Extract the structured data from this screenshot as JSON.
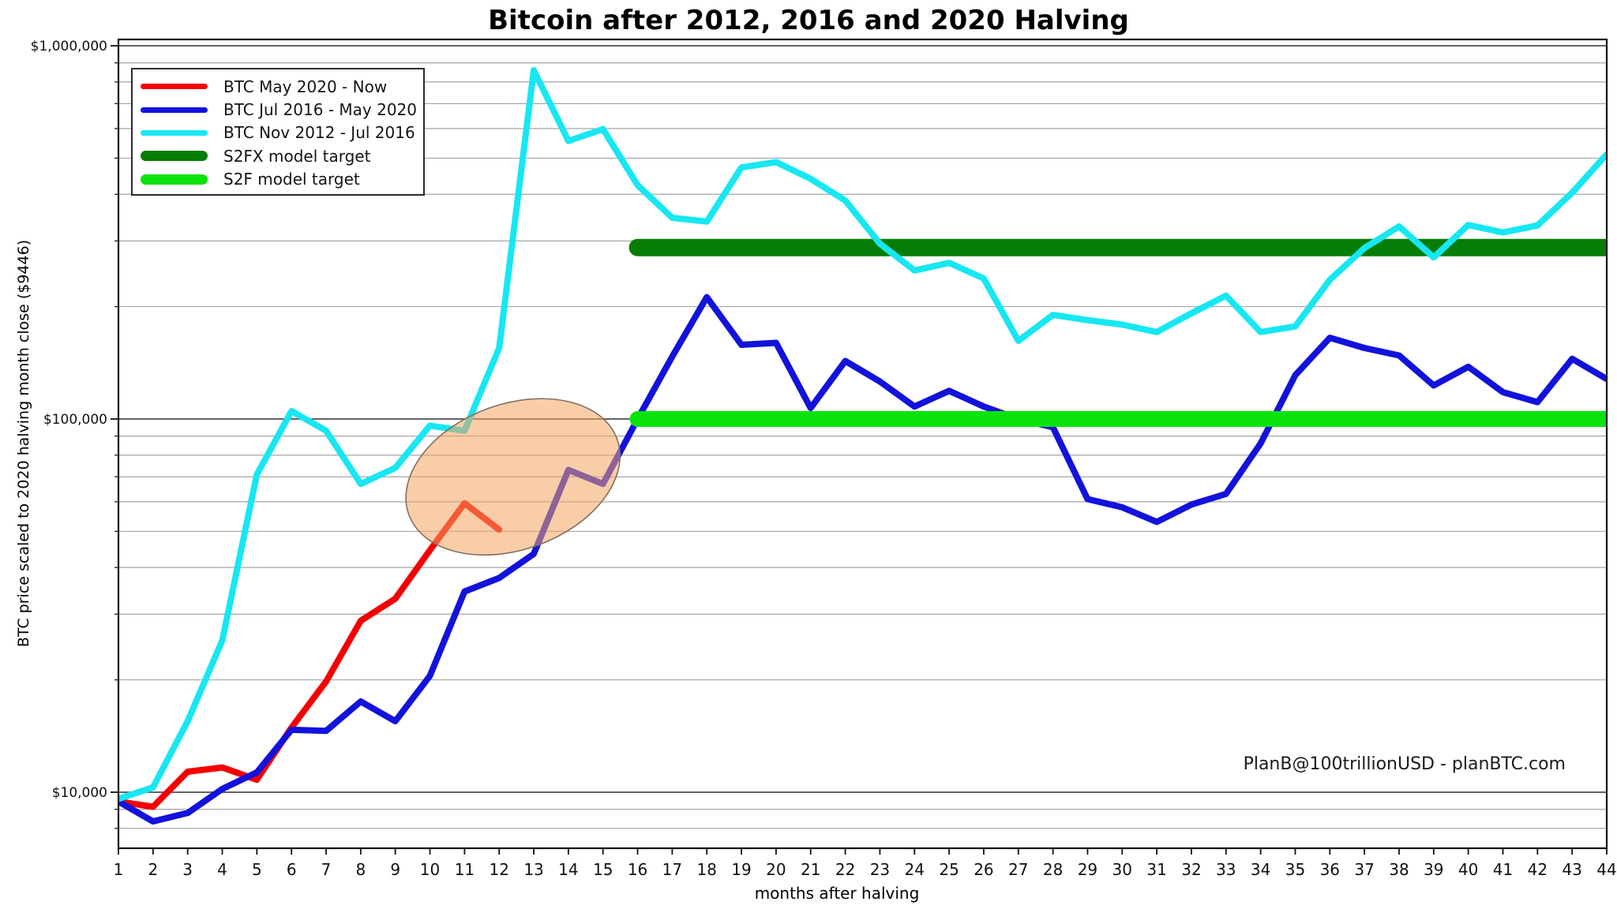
{
  "title": "Bitcoin after 2012, 2016 and 2020 Halving",
  "attribution": "PlanB@100trillionUSD  -  planBTC.com",
  "axes": {
    "y_label": "BTC price scaled to 2020 halving month close ($9446)",
    "x_label": "months after halving",
    "y_ticks": [
      {
        "label": "$1,000,000",
        "value": 1000000
      },
      {
        "label": "$100,000",
        "value": 100000
      },
      {
        "label": "$10,000",
        "value": 10000
      }
    ],
    "x_ticks": {
      "min": 1,
      "max": 44,
      "step": 1
    }
  },
  "legend": {
    "items": [
      {
        "id": "btc-2020",
        "label": "BTC May 2020 - Now",
        "color": "#f40000",
        "thickness": 7
      },
      {
        "id": "btc-2016",
        "label": "BTC Jul 2016 - May 2020",
        "color": "#1212dc",
        "thickness": 7
      },
      {
        "id": "btc-2012",
        "label": "BTC Nov 2012 - Jul 2016",
        "color": "#17e7f2",
        "thickness": 7
      },
      {
        "id": "s2fx",
        "label": "S2FX model target",
        "color": "#067d06",
        "thickness": 13
      },
      {
        "id": "s2f",
        "label": "S2F model target",
        "color": "#0ae30a",
        "thickness": 13
      }
    ]
  },
  "chart_data": {
    "type": "line",
    "title": "Bitcoin after 2012, 2016 and 2020 Halving",
    "xlabel": "months after halving",
    "ylabel": "BTC price scaled to 2020 halving month close ($9446)",
    "y_scale": "log",
    "y_range": [
      7000,
      1050000
    ],
    "x_range": [
      1,
      44
    ],
    "grid": "horizontal-log",
    "legend_position": "upper-left",
    "series": [
      {
        "id": "btc-2020",
        "name": "BTC May 2020 - Now",
        "color": "#f40000",
        "width": 8,
        "zorder": 1,
        "start_month": 1,
        "values": [
          9446,
          9140,
          11350,
          11650,
          10800,
          14900,
          19800,
          28800,
          33000,
          44500,
          59500,
          50500
        ]
      },
      {
        "id": "btc-2016",
        "name": "BTC Jul 2016 - May 2020",
        "color": "#1212dc",
        "width": 8,
        "zorder": 2,
        "start_month": 1,
        "values": [
          9446,
          8350,
          8800,
          10200,
          11300,
          14700,
          14600,
          17500,
          15500,
          20500,
          34500,
          37500,
          43500,
          73000,
          67000,
          100000,
          147000,
          212000,
          158000,
          160000,
          107000,
          143000,
          126000,
          108000,
          119000,
          108000,
          100000,
          95000,
          61000,
          58000,
          53000,
          59000,
          63000,
          86000,
          131000,
          165000,
          155000,
          148000,
          123000,
          138000,
          118000,
          111000,
          145000,
          128000
        ]
      },
      {
        "id": "btc-2012",
        "name": "BTC Nov 2012 - Jul 2016",
        "color": "#17e7f2",
        "width": 8,
        "zorder": 5,
        "start_month": 1,
        "values": [
          9600,
          10300,
          15500,
          25500,
          71000,
          105000,
          93000,
          67000,
          74000,
          96000,
          93000,
          155000,
          860000,
          556000,
          598000,
          423000,
          346000,
          338000,
          472000,
          488000,
          440000,
          385000,
          295000,
          250000,
          262000,
          238000,
          162000,
          190000,
          184000,
          179000,
          171000,
          192000,
          214000,
          171000,
          177000,
          236000,
          287000,
          328000,
          271000,
          331000,
          316000,
          330000,
          404000,
          512000
        ]
      }
    ],
    "model_lines": [
      {
        "id": "s2fx",
        "name": "S2FX model target",
        "color": "#067d06",
        "width": 22,
        "zorder": 3,
        "value": 288000,
        "from_month": 16,
        "to_month": 44
      },
      {
        "id": "s2f",
        "name": "S2F model target",
        "color": "#0ae30a",
        "width": 20,
        "zorder": 4,
        "value": 100000,
        "from_month": 16,
        "to_month": 44
      }
    ],
    "annotation": {
      "shape": "ellipse",
      "center_month": 12.4,
      "center_value": 70000,
      "rx_months": 3.2,
      "ry_decades": 0.195,
      "rotation_deg": -20,
      "fill": "#f4a460",
      "fill_opacity": 0.55,
      "stroke": "#807060"
    }
  }
}
